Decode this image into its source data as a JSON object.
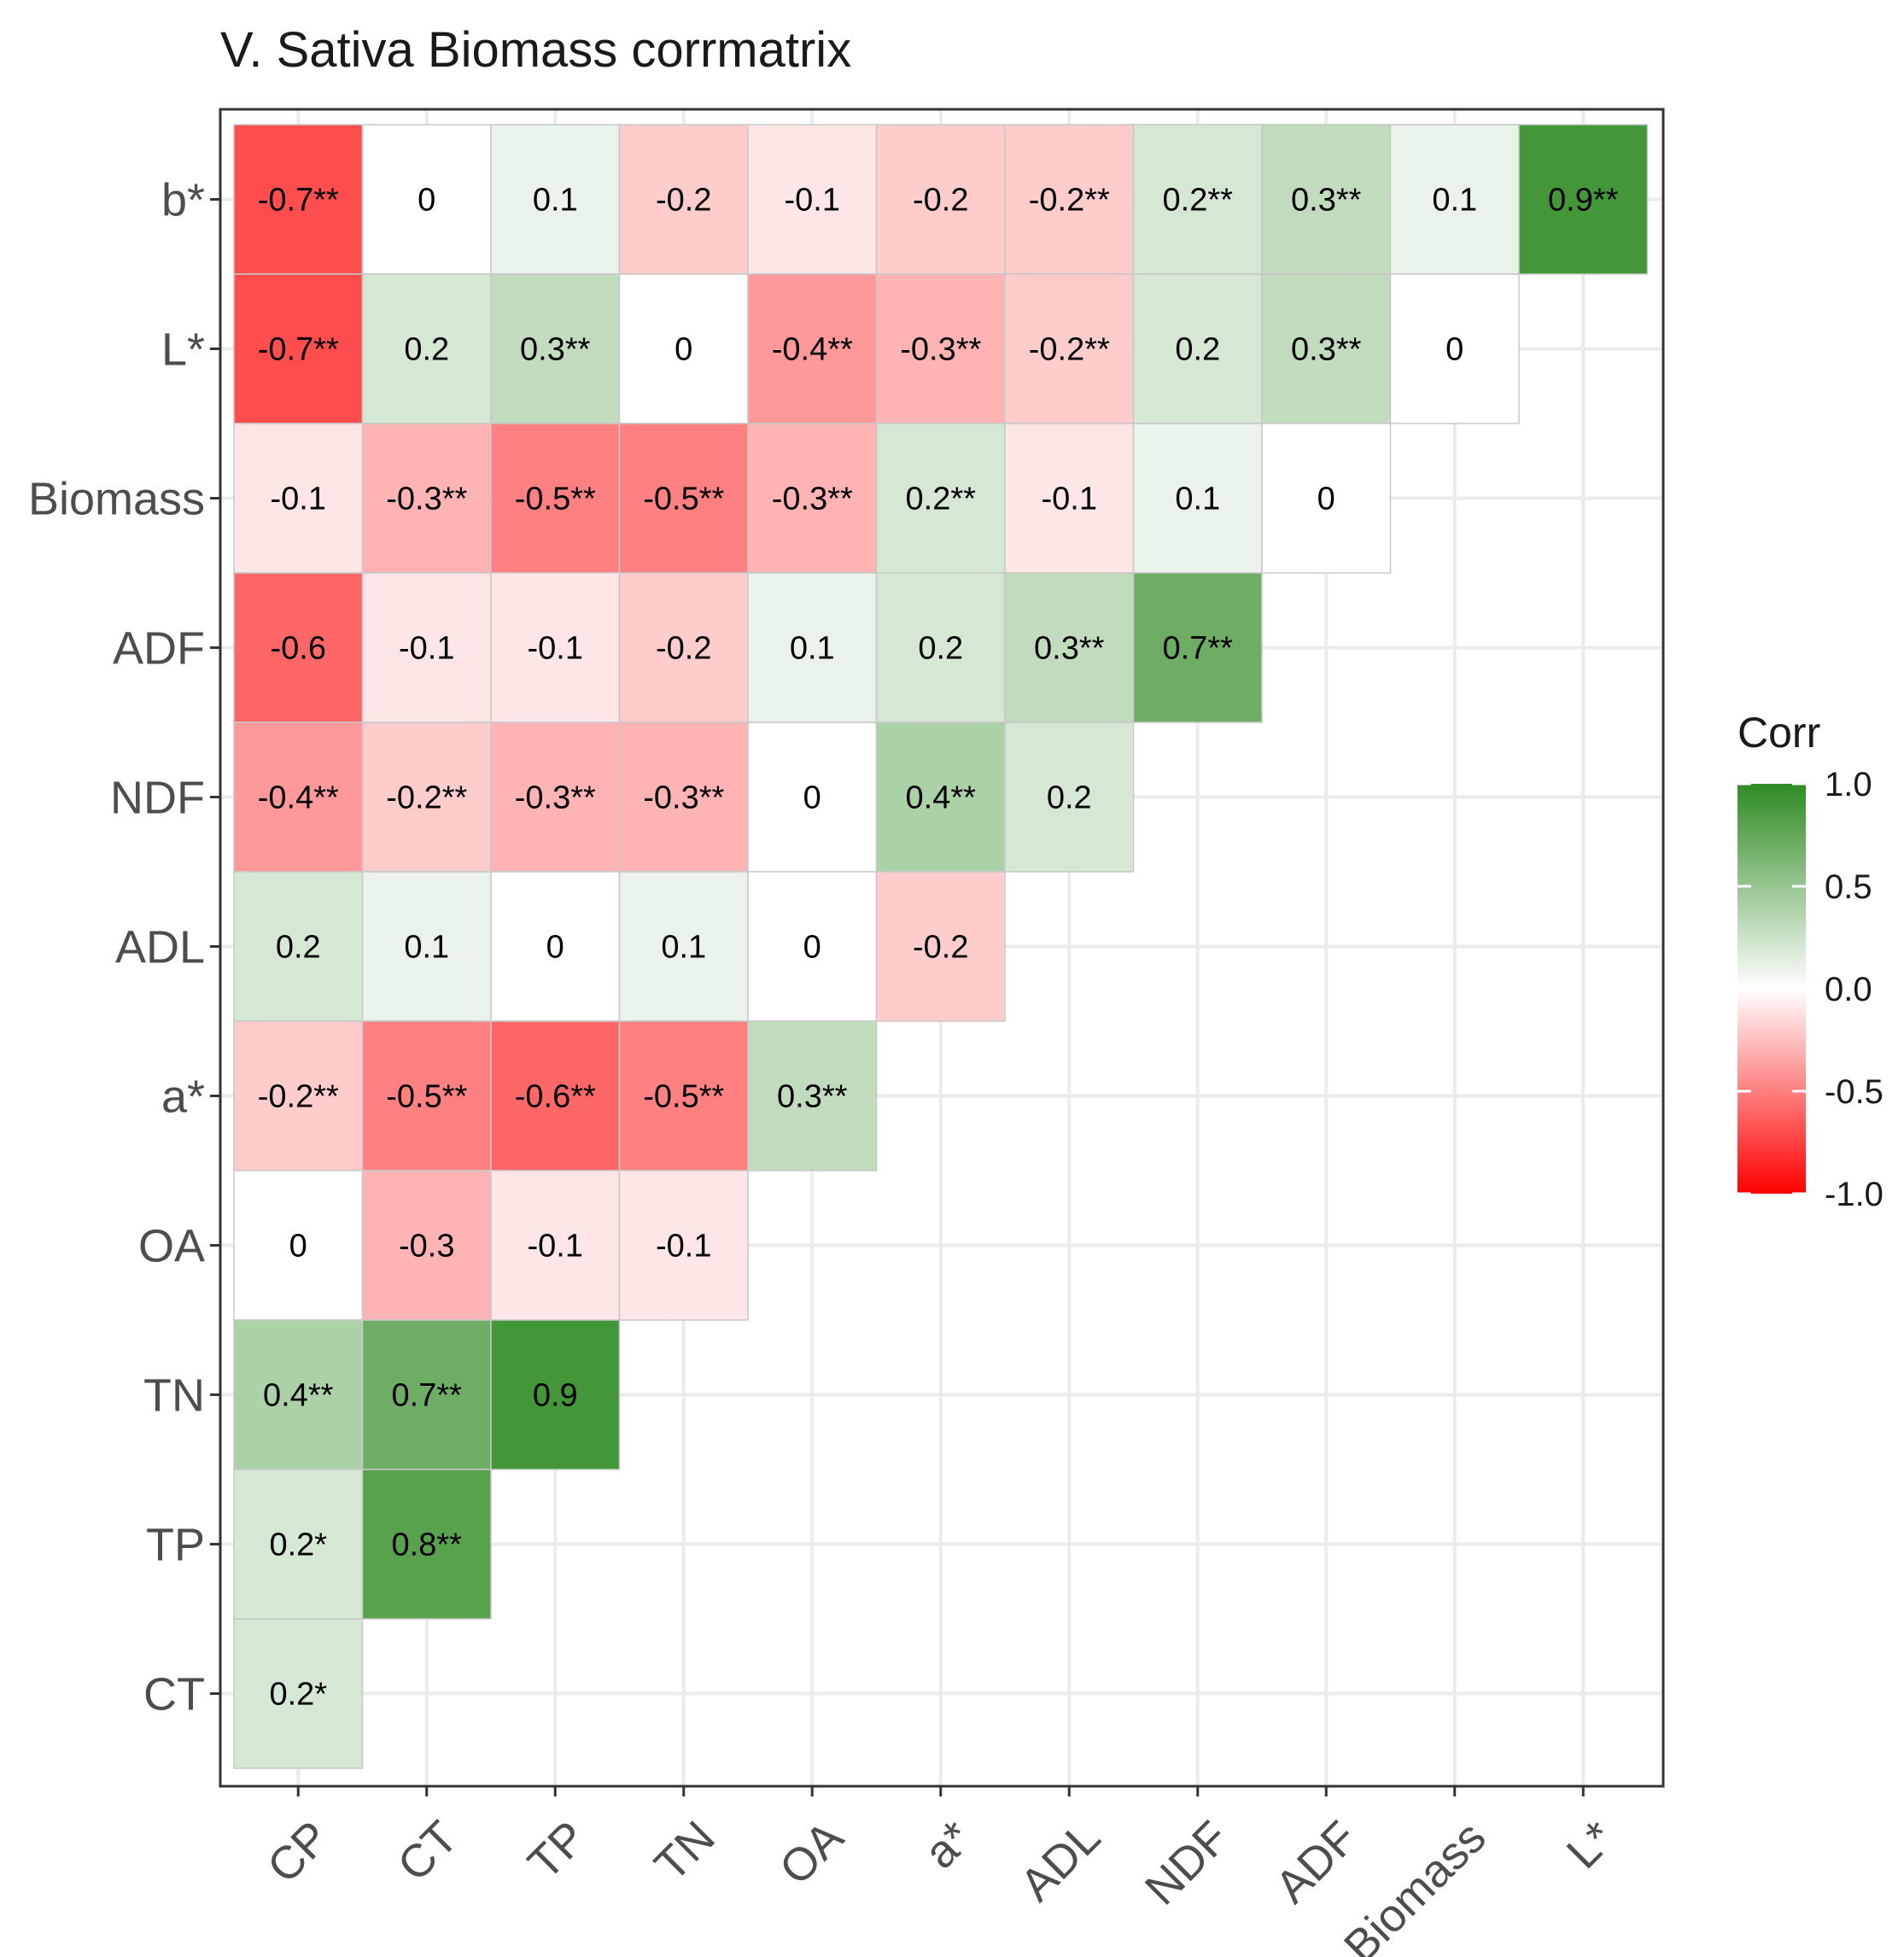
{
  "chart_data": {
    "type": "heatmap",
    "title": "V. Sativa Biomass corrmatrix",
    "x_categories": [
      "CP",
      "CT",
      "TP",
      "TN",
      "OA",
      "a*",
      "ADL",
      "NDF",
      "ADF",
      "Biomass",
      "L*"
    ],
    "y_categories": [
      "b*",
      "L*",
      "Biomass",
      "ADF",
      "NDF",
      "ADL",
      "a*",
      "OA",
      "TN",
      "TP",
      "CT"
    ],
    "rows": [
      {
        "y": "b*",
        "values": [
          -0.7,
          0,
          0.1,
          -0.2,
          -0.1,
          -0.2,
          -0.2,
          0.2,
          0.3,
          0.1,
          0.9
        ],
        "labels": [
          "-0.7**",
          "0",
          "0.1",
          "-0.2",
          "-0.1",
          "-0.2",
          "-0.2**",
          "0.2**",
          "0.3**",
          "0.1",
          "0.9**"
        ]
      },
      {
        "y": "L*",
        "values": [
          -0.7,
          0.2,
          0.3,
          0,
          -0.4,
          -0.3,
          -0.2,
          0.2,
          0.3,
          0
        ],
        "labels": [
          "-0.7**",
          "0.2",
          "0.3**",
          "0",
          "-0.4**",
          "-0.3**",
          "-0.2**",
          "0.2",
          "0.3**",
          "0"
        ]
      },
      {
        "y": "Biomass",
        "values": [
          -0.1,
          -0.3,
          -0.5,
          -0.5,
          -0.3,
          0.2,
          -0.1,
          0.1,
          0
        ],
        "labels": [
          "-0.1",
          "-0.3**",
          "-0.5**",
          "-0.5**",
          "-0.3**",
          "0.2**",
          "-0.1",
          "0.1",
          "0"
        ]
      },
      {
        "y": "ADF",
        "values": [
          -0.6,
          -0.1,
          -0.1,
          -0.2,
          0.1,
          0.2,
          0.3,
          0.7
        ],
        "labels": [
          "-0.6",
          "-0.1",
          "-0.1",
          "-0.2",
          "0.1",
          "0.2",
          "0.3**",
          "0.7**"
        ]
      },
      {
        "y": "NDF",
        "values": [
          -0.4,
          -0.2,
          -0.3,
          -0.3,
          0,
          0.4,
          0.2
        ],
        "labels": [
          "-0.4**",
          "-0.2**",
          "-0.3**",
          "-0.3**",
          "0",
          "0.4**",
          "0.2"
        ]
      },
      {
        "y": "ADL",
        "values": [
          0.2,
          0.1,
          0,
          0.1,
          0,
          -0.2
        ],
        "labels": [
          "0.2",
          "0.1",
          "0",
          "0.1",
          "0",
          "-0.2"
        ]
      },
      {
        "y": "a*",
        "values": [
          -0.2,
          -0.5,
          -0.6,
          -0.5,
          0.3
        ],
        "labels": [
          "-0.2**",
          "-0.5**",
          "-0.6**",
          "-0.5**",
          "0.3**"
        ]
      },
      {
        "y": "OA",
        "values": [
          0,
          -0.3,
          -0.1,
          -0.1
        ],
        "labels": [
          "0",
          "-0.3",
          "-0.1",
          "-0.1"
        ]
      },
      {
        "y": "TN",
        "values": [
          0.4,
          0.7,
          0.9
        ],
        "labels": [
          "0.4**",
          "0.7**",
          "0.9"
        ]
      },
      {
        "y": "TP",
        "values": [
          0.2,
          0.8
        ],
        "labels": [
          "0.2*",
          "0.8**"
        ]
      },
      {
        "y": "CT",
        "values": [
          0.2
        ],
        "labels": [
          "0.2*"
        ]
      }
    ],
    "legend": {
      "title": "Corr",
      "range": [
        -1.0,
        1.0
      ],
      "ticks": [
        "1.0",
        "0.5",
        "0.0",
        "-0.5",
        "-1.0"
      ],
      "tick_values": [
        1.0,
        0.5,
        0.0,
        -0.5,
        -1.0
      ],
      "placement": "right"
    },
    "colors": {
      "high": "#2e8b22",
      "mid": "#ffffff",
      "low": "#ff0000",
      "grid": "#ebebeb",
      "panel_border": "#333333",
      "tile_border": "#c8c8c8"
    },
    "grid": true
  }
}
